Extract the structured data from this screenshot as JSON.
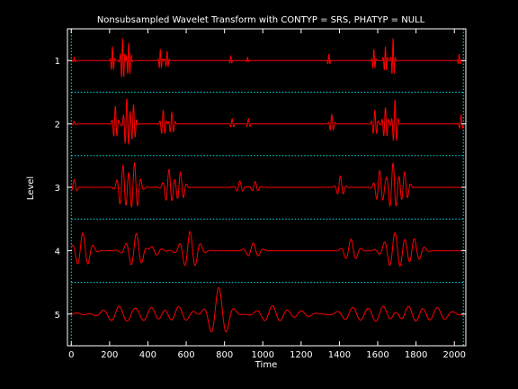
{
  "chart_data": {
    "type": "line",
    "title": "Nonsubsampled Wavelet Transform with CONTYP = SRS, PHATYP = NULL",
    "xlabel": "Time",
    "ylabel": "Level",
    "xlim": [
      -20,
      2060
    ],
    "ylim": [
      0.5,
      5.5
    ],
    "x_ticks": [
      0,
      200,
      400,
      600,
      800,
      1000,
      1200,
      1400,
      1600,
      1800,
      2000
    ],
    "y_ticks": [
      1,
      2,
      3,
      4,
      5
    ],
    "y_reversed": true,
    "series_color": "#ff0000",
    "separator_color": "#00e5ee",
    "axes_color": "#ffffff",
    "background": "#000000",
    "levels": [
      {
        "level": 1,
        "events": [
          {
            "t": 15,
            "a": 0.05,
            "w": 4,
            "f": 0.08
          },
          {
            "t": 215,
            "a": 0.22,
            "w": 6,
            "f": 0.08
          },
          {
            "t": 268,
            "a": 0.35,
            "w": 8,
            "f": 0.08
          },
          {
            "t": 300,
            "a": 0.28,
            "w": 8,
            "f": 0.08
          },
          {
            "t": 465,
            "a": 0.18,
            "w": 6,
            "f": 0.08
          },
          {
            "t": 500,
            "a": 0.15,
            "w": 6,
            "f": 0.08
          },
          {
            "t": 833,
            "a": 0.07,
            "w": 5,
            "f": 0.08
          },
          {
            "t": 920,
            "a": 0.05,
            "w": 4,
            "f": 0.08
          },
          {
            "t": 1345,
            "a": 0.1,
            "w": 5,
            "f": 0.08
          },
          {
            "t": 1580,
            "a": 0.18,
            "w": 6,
            "f": 0.08
          },
          {
            "t": 1640,
            "a": 0.22,
            "w": 7,
            "f": 0.08
          },
          {
            "t": 1680,
            "a": 0.35,
            "w": 6,
            "f": 0.08
          },
          {
            "t": 2025,
            "a": 0.1,
            "w": 5,
            "f": 0.08
          }
        ]
      },
      {
        "level": 2,
        "events": [
          {
            "t": 15,
            "a": 0.04,
            "w": 6,
            "f": 0.05
          },
          {
            "t": 230,
            "a": 0.28,
            "w": 10,
            "f": 0.055
          },
          {
            "t": 290,
            "a": 0.4,
            "w": 12,
            "f": 0.055
          },
          {
            "t": 325,
            "a": 0.3,
            "w": 10,
            "f": 0.055
          },
          {
            "t": 480,
            "a": 0.22,
            "w": 10,
            "f": 0.055
          },
          {
            "t": 525,
            "a": 0.18,
            "w": 10,
            "f": 0.055
          },
          {
            "t": 840,
            "a": 0.08,
            "w": 8,
            "f": 0.055
          },
          {
            "t": 925,
            "a": 0.08,
            "w": 7,
            "f": 0.055
          },
          {
            "t": 1360,
            "a": 0.15,
            "w": 9,
            "f": 0.055
          },
          {
            "t": 1585,
            "a": 0.22,
            "w": 10,
            "f": 0.055
          },
          {
            "t": 1640,
            "a": 0.26,
            "w": 11,
            "f": 0.055
          },
          {
            "t": 1690,
            "a": 0.38,
            "w": 10,
            "f": 0.055
          },
          {
            "t": 2035,
            "a": 0.14,
            "w": 7,
            "f": 0.055
          }
        ]
      },
      {
        "level": 3,
        "events": [
          {
            "t": 15,
            "a": 0.12,
            "w": 12,
            "f": 0.03
          },
          {
            "t": 270,
            "a": 0.34,
            "w": 22,
            "f": 0.03
          },
          {
            "t": 330,
            "a": 0.38,
            "w": 22,
            "f": 0.03
          },
          {
            "t": 510,
            "a": 0.28,
            "w": 20,
            "f": 0.03
          },
          {
            "t": 570,
            "a": 0.24,
            "w": 18,
            "f": 0.03
          },
          {
            "t": 880,
            "a": 0.1,
            "w": 15,
            "f": 0.03
          },
          {
            "t": 960,
            "a": 0.09,
            "w": 15,
            "f": 0.03
          },
          {
            "t": 1405,
            "a": 0.18,
            "w": 15,
            "f": 0.03
          },
          {
            "t": 1610,
            "a": 0.26,
            "w": 20,
            "f": 0.03
          },
          {
            "t": 1680,
            "a": 0.38,
            "w": 22,
            "f": 0.03
          },
          {
            "t": 1740,
            "a": 0.24,
            "w": 18,
            "f": 0.03
          }
        ]
      },
      {
        "level": 4,
        "events": [
          {
            "t": 60,
            "a": 0.28,
            "w": 35,
            "f": 0.018
          },
          {
            "t": 340,
            "a": 0.28,
            "w": 40,
            "f": 0.018
          },
          {
            "t": 420,
            "a": 0.1,
            "w": 35,
            "f": 0.018
          },
          {
            "t": 620,
            "a": 0.3,
            "w": 38,
            "f": 0.018
          },
          {
            "t": 950,
            "a": 0.12,
            "w": 30,
            "f": 0.018
          },
          {
            "t": 1460,
            "a": 0.18,
            "w": 30,
            "f": 0.018
          },
          {
            "t": 1690,
            "a": 0.28,
            "w": 45,
            "f": 0.018
          },
          {
            "t": 1790,
            "a": 0.18,
            "w": 35,
            "f": 0.018
          }
        ]
      },
      {
        "level": 5,
        "events": [
          {
            "t": 30,
            "a": 0.02,
            "w": 40,
            "f": 0.012
          },
          {
            "t": 250,
            "a": 0.12,
            "w": 70,
            "f": 0.012
          },
          {
            "t": 420,
            "a": 0.1,
            "w": 60,
            "f": 0.012
          },
          {
            "t": 560,
            "a": 0.12,
            "w": 60,
            "f": 0.012
          },
          {
            "t": 770,
            "a": 0.42,
            "w": 45,
            "f": 0.012
          },
          {
            "t": 1050,
            "a": 0.13,
            "w": 60,
            "f": 0.012
          },
          {
            "t": 1200,
            "a": 0.05,
            "w": 50,
            "f": 0.012
          },
          {
            "t": 1470,
            "a": 0.1,
            "w": 60,
            "f": 0.012
          },
          {
            "t": 1630,
            "a": 0.13,
            "w": 60,
            "f": 0.012
          },
          {
            "t": 1760,
            "a": 0.13,
            "w": 60,
            "f": 0.012
          },
          {
            "t": 1910,
            "a": 0.1,
            "w": 60,
            "f": 0.012
          }
        ]
      }
    ]
  }
}
